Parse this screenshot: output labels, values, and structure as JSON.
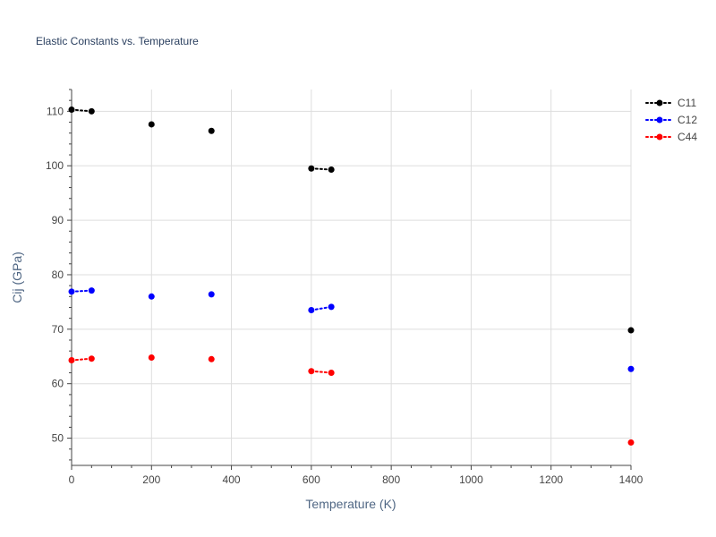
{
  "chart_data": {
    "type": "scatter",
    "title": "Elastic Constants vs. Temperature",
    "xlabel": "Temperature (K)",
    "ylabel": "Cij (GPa)",
    "xlim": [
      0,
      1400
    ],
    "ylim": [
      45,
      114
    ],
    "x_ticks": [
      0,
      200,
      400,
      600,
      800,
      1000,
      1200,
      1400
    ],
    "y_ticks": [
      50,
      60,
      70,
      80,
      90,
      100,
      110
    ],
    "grid": true,
    "legend_position": "top-right",
    "series": [
      {
        "name": "C11",
        "color": "#000000",
        "points": [
          [
            0,
            110.3
          ],
          [
            50,
            110.0
          ],
          [
            200,
            107.6
          ],
          [
            350,
            106.4
          ],
          [
            600,
            99.5
          ],
          [
            650,
            99.3
          ],
          [
            1400,
            69.8
          ]
        ],
        "segments": [
          [
            0,
            1
          ],
          [
            4,
            5
          ]
        ]
      },
      {
        "name": "C12",
        "color": "#0000ff",
        "points": [
          [
            0,
            76.9
          ],
          [
            50,
            77.1
          ],
          [
            200,
            76.0
          ],
          [
            350,
            76.4
          ],
          [
            600,
            73.5
          ],
          [
            650,
            74.1
          ],
          [
            1400,
            62.7
          ]
        ],
        "segments": [
          [
            0,
            1
          ],
          [
            4,
            5
          ]
        ]
      },
      {
        "name": "C44",
        "color": "#ff0000",
        "points": [
          [
            0,
            64.3
          ],
          [
            50,
            64.6
          ],
          [
            200,
            64.8
          ],
          [
            350,
            64.5
          ],
          [
            600,
            62.3
          ],
          [
            650,
            62.0
          ],
          [
            1400,
            49.2
          ]
        ],
        "segments": [
          [
            0,
            1
          ],
          [
            4,
            5
          ]
        ]
      }
    ]
  }
}
